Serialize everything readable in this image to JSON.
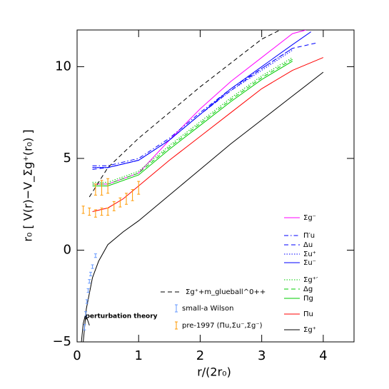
{
  "chart_data": {
    "type": "line",
    "x_label": "r/(2r₀)",
    "y_label": "r₀ [ V(r)−V_Σg⁺(r₀) ]",
    "xlim": [
      0,
      4.5
    ],
    "ylim": [
      -5,
      12
    ],
    "xticks": [
      0,
      1,
      2,
      3,
      4
    ],
    "yticks": [
      {
        "value": -5,
        "label": "−5"
      },
      0,
      5,
      10
    ],
    "annotation": "perturbation theory",
    "series": [
      {
        "name": "Σg⁻",
        "color": "#ff00ff",
        "dash": "solid",
        "x": [
          0.25,
          0.5,
          1,
          1.5,
          2,
          2.5,
          3,
          3.5,
          3.72
        ],
        "values": [
          3.6,
          3.6,
          4.2,
          6.0,
          7.7,
          9.2,
          10.5,
          11.8,
          12.0
        ]
      },
      {
        "name": "Π′u",
        "color": "#0000ff",
        "dash": "dashdot",
        "x": [
          0.25,
          0.5,
          1,
          1.5,
          2,
          2.5,
          3,
          3.5
        ],
        "values": [
          4.6,
          4.6,
          5.0,
          6.1,
          7.5,
          8.8,
          9.9,
          11.0
        ]
      },
      {
        "name": "Δu",
        "color": "#0000ff",
        "dash": "dashed",
        "x": [
          0.25,
          0.5,
          1,
          1.5,
          2,
          2.5,
          3,
          3.5,
          3.9
        ],
        "values": [
          4.4,
          4.5,
          4.9,
          6.0,
          7.4,
          8.7,
          9.9,
          11.0,
          11.3
        ]
      },
      {
        "name": "Σu⁺",
        "color": "#0000ff",
        "dash": "dotted",
        "x": [
          0.25,
          0.5,
          1,
          1.5,
          2,
          2.5,
          3,
          3.5
        ],
        "values": [
          4.5,
          4.5,
          4.9,
          6.0,
          7.4,
          8.7,
          9.8,
          10.9
        ]
      },
      {
        "name": "Σu⁻",
        "color": "#0000ff",
        "dash": "solid",
        "x": [
          0.25,
          0.5,
          1,
          1.5,
          2,
          2.5,
          3,
          3.5,
          3.8
        ],
        "values": [
          4.5,
          4.5,
          4.9,
          6.0,
          7.4,
          8.8,
          10.0,
          11.2,
          11.9
        ]
      },
      {
        "name": "Σg⁺′",
        "color": "#00cc00",
        "dash": "dotted",
        "x": [
          0.25,
          0.5,
          1,
          1.5,
          2,
          2.5,
          3,
          3.5
        ],
        "values": [
          3.7,
          3.7,
          4.3,
          5.7,
          7.0,
          8.3,
          9.5,
          10.5
        ]
      },
      {
        "name": "Δg",
        "color": "#00cc00",
        "dash": "dashed",
        "x": [
          0.25,
          0.5,
          1,
          1.5,
          2,
          2.5,
          3,
          3.5
        ],
        "values": [
          3.6,
          3.6,
          4.2,
          5.6,
          6.9,
          8.2,
          9.4,
          10.4
        ]
      },
      {
        "name": "Πg",
        "color": "#00cc00",
        "dash": "solid",
        "x": [
          0.25,
          0.5,
          1,
          1.5,
          2,
          2.5,
          3,
          3.5
        ],
        "values": [
          3.5,
          3.5,
          4.1,
          5.5,
          6.8,
          8.1,
          9.3,
          10.3
        ]
      },
      {
        "name": "Πu",
        "color": "#ff0000",
        "dash": "solid",
        "x": [
          0.25,
          0.5,
          0.75,
          1,
          1.5,
          2,
          2.5,
          3,
          3.5,
          4
        ],
        "values": [
          2.1,
          2.3,
          2.8,
          3.5,
          4.9,
          6.2,
          7.5,
          8.8,
          9.8,
          10.5
        ]
      },
      {
        "name": "Σg⁺",
        "color": "#000000",
        "dash": "solid",
        "x": [
          0.1,
          0.15,
          0.25,
          0.35,
          0.5,
          0.75,
          1,
          1.5,
          2,
          2.5,
          3,
          3.5,
          4
        ],
        "values": [
          -5,
          -3.2,
          -1.5,
          -0.6,
          0.3,
          1.0,
          1.6,
          3.0,
          4.4,
          5.8,
          7.1,
          8.4,
          9.7
        ]
      },
      {
        "name": "Σg⁺+m_glueball^0++",
        "color": "#000000",
        "dash": "dashed",
        "x": [
          0.2,
          0.5,
          1,
          2,
          3,
          3.3
        ],
        "values": [
          2.9,
          4.5,
          6.1,
          8.9,
          11.5,
          12.0
        ]
      },
      {
        "name": "small-a Wilson",
        "color": "#6699ff",
        "kind": "points",
        "x": [
          0.12,
          0.14,
          0.16,
          0.18,
          0.2,
          0.22,
          0.25,
          0.3
        ],
        "values": [
          -4.2,
          -3.5,
          -2.8,
          -2.2,
          -1.7,
          -1.3,
          -0.9,
          -0.3
        ],
        "errors": [
          0.15,
          0.15,
          0.1,
          0.1,
          0.1,
          0.1,
          0.1,
          0.1
        ]
      },
      {
        "name": "pre-1997 (Πu,Σu⁻,Σg⁻)",
        "color": "#ff9900",
        "kind": "points",
        "x": [
          0.1,
          0.2,
          0.3,
          0.4,
          0.5,
          0.6,
          0.7,
          0.8,
          0.9,
          1.0,
          0.3,
          0.4,
          0.5
        ],
        "values": [
          2.2,
          2.1,
          2.0,
          2.1,
          2.1,
          2.4,
          2.6,
          2.8,
          3.0,
          3.4,
          3.3,
          3.4,
          3.5
        ],
        "errors": [
          0.2,
          0.2,
          0.2,
          0.2,
          0.2,
          0.25,
          0.25,
          0.3,
          0.3,
          0.35,
          0.3,
          0.4,
          0.4
        ]
      },
      {
        "color": "#000000",
        "dash": "solid",
        "x": [
          0.07,
          0.1,
          0.13,
          0.16,
          0.2
        ],
        "values": [
          -5,
          -4.0,
          -3.6,
          -3.7,
          -4.1
        ]
      }
    ]
  }
}
